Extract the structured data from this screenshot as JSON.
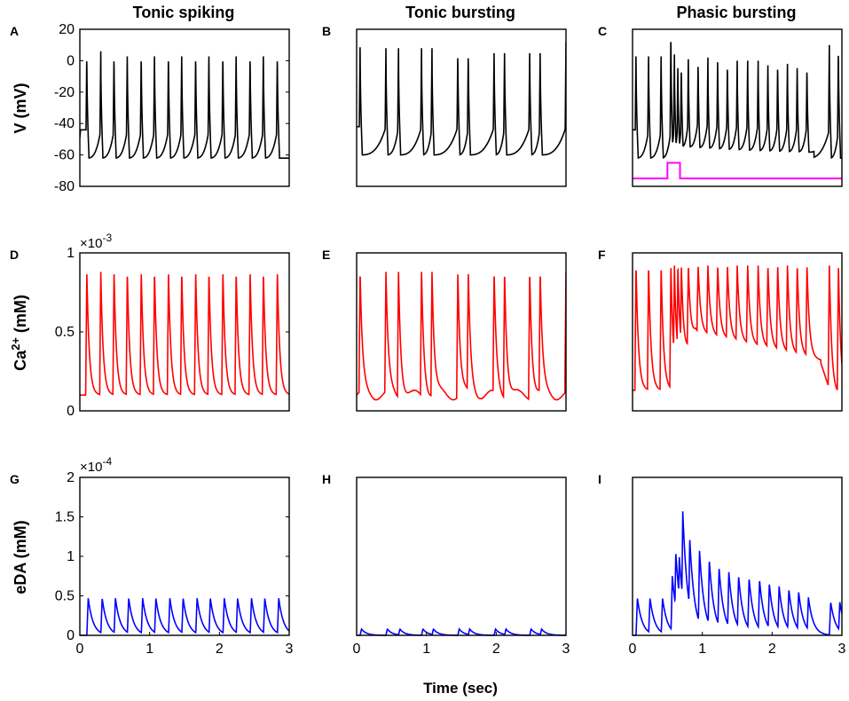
{
  "columns": [
    "Tonic spiking",
    "Tonic bursting",
    "Phasic bursting"
  ],
  "panel_letters": [
    "A",
    "B",
    "C",
    "D",
    "E",
    "F",
    "G",
    "H",
    "I"
  ],
  "row_ylabels": {
    "V": "V (mV)",
    "Ca_main": "Ca",
    "Ca_sup": "2+",
    "Ca_unit": " (mM)",
    "eDA": "eDA (mM)"
  },
  "multipliers": {
    "Ca": {
      "base": "×10",
      "exp": "-3"
    },
    "eDA": {
      "base": "×10",
      "exp": "-4"
    }
  },
  "xlabel": "Time (sec)",
  "colors": {
    "voltage": "#000000",
    "calcium": "#ff0000",
    "dopamine": "#0000ff",
    "stimulus": "#ff00ff",
    "axes": "#000000"
  },
  "chart_data": [
    {
      "type": "line",
      "panel": "A",
      "row": "V",
      "column": "Tonic spiking",
      "xlabel": "",
      "ylabel": "V (mV)",
      "xlim": [
        0,
        3
      ],
      "ylim": [
        -80,
        20
      ],
      "yticks": [
        -80,
        -60,
        -40,
        -20,
        0,
        20
      ],
      "ytick_labels": [
        "-80",
        "-60",
        "-40",
        "-20",
        "0",
        "20"
      ],
      "rest": -62,
      "peak": 6,
      "spike_times": [
        0.1,
        0.3,
        0.49,
        0.68,
        0.88,
        1.07,
        1.27,
        1.46,
        1.66,
        1.85,
        2.05,
        2.24,
        2.44,
        2.63,
        2.83
      ]
    },
    {
      "type": "line",
      "panel": "B",
      "row": "V",
      "column": "Tonic bursting",
      "xlim": [
        0,
        3
      ],
      "ylim": [
        -80,
        20
      ],
      "rest": -60,
      "peak": 12,
      "spike_times": [
        0.05,
        0.42,
        0.6,
        0.93,
        1.08,
        1.45,
        1.6,
        1.97,
        2.12,
        2.48,
        2.63,
        3.0
      ],
      "spike_peaks": [
        12,
        8,
        8,
        8,
        8,
        8,
        8,
        8,
        8,
        8,
        8,
        12
      ]
    },
    {
      "type": "line",
      "panel": "C",
      "row": "V",
      "column": "Phasic bursting",
      "xlim": [
        0,
        3
      ],
      "ylim": [
        -80,
        20
      ],
      "rest": -62,
      "peak": 6,
      "spike_times": [
        0.05,
        0.23,
        0.41,
        0.55,
        0.6,
        0.65,
        0.7,
        0.8,
        0.94,
        1.08,
        1.22,
        1.36,
        1.5,
        1.65,
        1.8,
        1.94,
        2.08,
        2.22,
        2.36,
        2.5,
        2.82,
        2.95
      ],
      "spike_peaks": [
        6,
        6,
        6,
        20,
        4,
        -2,
        -2,
        4,
        2,
        2,
        2,
        0,
        0,
        0,
        0,
        0,
        0,
        -2,
        -2,
        -2,
        10,
        10
      ],
      "stimulus": {
        "t_on": 0.5,
        "t_off": 0.68,
        "low": -75,
        "high": -65
      }
    },
    {
      "type": "line",
      "panel": "D",
      "row": "Ca",
      "column": "Tonic spiking",
      "ylabel": "Ca2+ (mM)",
      "scale": "x10^-3",
      "xlim": [
        0,
        3
      ],
      "ylim": [
        0,
        1
      ],
      "yticks": [
        0,
        0.5,
        1
      ],
      "ytick_labels": [
        "0",
        "0.5",
        "1"
      ],
      "baseline": 0.1,
      "peak": 0.88,
      "spike_times": [
        0.1,
        0.3,
        0.49,
        0.68,
        0.88,
        1.07,
        1.27,
        1.46,
        1.66,
        1.85,
        2.05,
        2.24,
        2.44,
        2.63,
        2.83
      ]
    },
    {
      "type": "line",
      "panel": "E",
      "row": "Ca",
      "column": "Tonic bursting",
      "xlim": [
        0,
        3
      ],
      "ylim": [
        0,
        1
      ],
      "baseline": 0.1,
      "peak": 0.88,
      "spike_times": [
        0.05,
        0.42,
        0.6,
        0.93,
        1.08,
        1.45,
        1.6,
        1.97,
        2.12,
        2.48,
        2.63,
        3.0
      ]
    },
    {
      "type": "line",
      "panel": "F",
      "row": "Ca",
      "column": "Phasic bursting",
      "xlim": [
        0,
        3
      ],
      "ylim": [
        0,
        1
      ],
      "baseline_pre": 0.13,
      "baseline_post": 0.42,
      "peak": 0.92,
      "spike_times": [
        0.05,
        0.23,
        0.41,
        0.55,
        0.6,
        0.65,
        0.7,
        0.8,
        0.94,
        1.08,
        1.22,
        1.36,
        1.5,
        1.65,
        1.8,
        1.94,
        2.08,
        2.22,
        2.36,
        2.5,
        2.82,
        2.95
      ]
    },
    {
      "type": "line",
      "panel": "G",
      "row": "eDA",
      "column": "Tonic spiking",
      "ylabel": "eDA (mM)",
      "scale": "x10^-4",
      "xlim": [
        0,
        3
      ],
      "ylim": [
        0,
        2
      ],
      "yticks": [
        0,
        0.5,
        1,
        1.5,
        2
      ],
      "ytick_labels": [
        "0",
        "0.5",
        "1",
        "1.5",
        "2"
      ],
      "xticks": [
        0,
        1,
        2,
        3
      ],
      "xtick_labels": [
        "0",
        "1",
        "2",
        "3"
      ],
      "peak": 0.47,
      "spike_times": [
        0.1,
        0.3,
        0.49,
        0.68,
        0.88,
        1.07,
        1.27,
        1.46,
        1.66,
        1.85,
        2.05,
        2.24,
        2.44,
        2.63,
        2.83
      ]
    },
    {
      "type": "line",
      "panel": "H",
      "row": "eDA",
      "column": "Tonic bursting",
      "xlim": [
        0,
        3
      ],
      "ylim": [
        0,
        2
      ],
      "xticks": [
        0,
        1,
        2,
        3
      ],
      "xtick_labels": [
        "0",
        "1",
        "2",
        "3"
      ],
      "peak": 0.08,
      "spike_times": [
        0.05,
        0.42,
        0.6,
        0.93,
        1.08,
        1.45,
        1.6,
        1.97,
        2.12,
        2.48,
        2.63,
        3.0
      ]
    },
    {
      "type": "line",
      "panel": "I",
      "row": "eDA",
      "column": "Phasic bursting",
      "xlim": [
        0,
        3
      ],
      "ylim": [
        0,
        2
      ],
      "xticks": [
        0,
        1,
        2,
        3
      ],
      "xtick_labels": [
        "0",
        "1",
        "2",
        "3"
      ],
      "spike_times": [
        0.05,
        0.23,
        0.41,
        0.55,
        0.6,
        0.65,
        0.7,
        0.8,
        0.94,
        1.08,
        1.22,
        1.36,
        1.5,
        1.65,
        1.8,
        1.94,
        2.08,
        2.22,
        2.36,
        2.5,
        2.82,
        2.95
      ],
      "envelope": [
        0.47,
        0.47,
        0.47,
        0.75,
        1.05,
        1.0,
        1.57,
        1.22,
        1.07,
        0.95,
        0.85,
        0.8,
        0.75,
        0.72,
        0.7,
        0.65,
        0.62,
        0.58,
        0.55,
        0.48,
        0.42,
        0.42
      ]
    }
  ]
}
